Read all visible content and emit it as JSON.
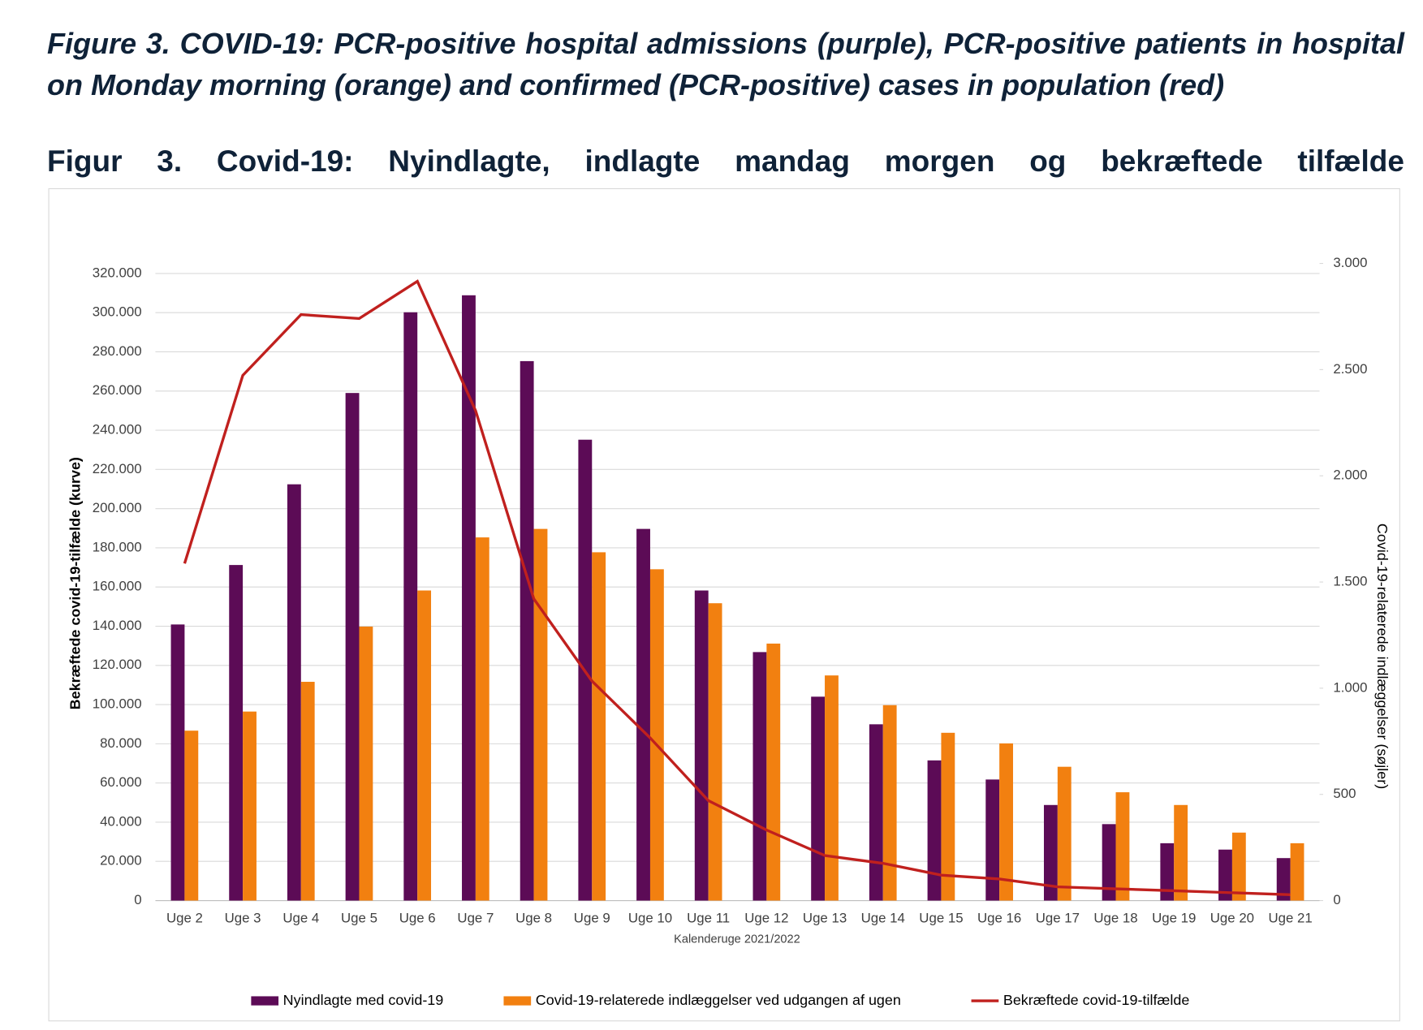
{
  "chart_data": {
    "type": "bar",
    "title": "Figure 3. COVID-19: PCR-positive hospital admissions (purple), PCR-positive patients in hospital on Monday morning (orange) and confirmed (PCR-positive) cases in population (red)",
    "subtitle": "Figur 3. Covid-19: Nyindlagte, indlagte mandag morgen og bekræftede tilfælde",
    "x_label": "Kalenderuge 2021/2022",
    "y_label": "Bekræftede covid-19-tilfælde (kurve)",
    "y2_label": "Covid-19-relaterede indlæggelser (søjler)",
    "categories": [
      "Uge 2",
      "Uge 3",
      "Uge 4",
      "Uge 5",
      "Uge 6",
      "Uge 7",
      "Uge 8",
      "Uge 9",
      "Uge 10",
      "Uge 11",
      "Uge 12",
      "Uge 13",
      "Uge 14",
      "Uge 15",
      "Uge 16",
      "Uge 17",
      "Uge 18",
      "Uge 19",
      "Uge 20",
      "Uge 21"
    ],
    "series": [
      {
        "name": "Nyindlagte med covid-19",
        "type": "bar",
        "axis": "y2",
        "color": "#5c0b56",
        "values": [
          1300,
          1580,
          1960,
          2390,
          2770,
          2850,
          2540,
          2170,
          1750,
          1460,
          1170,
          960,
          830,
          660,
          570,
          450,
          360,
          270,
          240,
          200
        ]
      },
      {
        "name": "Covid-19-relaterede indlæggelser ved udgangen af ugen",
        "type": "bar",
        "axis": "y2",
        "color": "#f28010",
        "values": [
          800,
          890,
          1030,
          1290,
          1460,
          1710,
          1750,
          1640,
          1560,
          1400,
          1210,
          1060,
          920,
          790,
          740,
          630,
          510,
          450,
          320,
          270
        ]
      },
      {
        "name": "Bekræftede covid-19-tilfælde",
        "type": "line",
        "axis": "y",
        "color": "#c0201e",
        "values": [
          172000,
          268000,
          299000,
          297000,
          316000,
          250000,
          154000,
          112000,
          83000,
          51000,
          36000,
          23000,
          19000,
          13000,
          11000,
          7000,
          6000,
          5000,
          4000,
          3000
        ]
      }
    ],
    "ylim": [
      0,
      320000
    ],
    "yticks": [
      0,
      {
        "value": 20000,
        "label": "20.000"
      },
      {
        "value": 40000,
        "label": "40.000"
      },
      {
        "value": 60000,
        "label": "60.000"
      },
      {
        "value": 80000,
        "label": "80.000"
      },
      {
        "value": 100000,
        "label": "100.000"
      },
      {
        "value": 120000,
        "label": "120.000"
      },
      {
        "value": 140000,
        "label": "140.000"
      },
      {
        "value": 160000,
        "label": "160.000"
      },
      {
        "value": 180000,
        "label": "180.000"
      },
      {
        "value": 200000,
        "label": "200.000"
      },
      {
        "value": 220000,
        "label": "220.000"
      },
      {
        "value": 240000,
        "label": "240.000"
      },
      {
        "value": 260000,
        "label": "260.000"
      },
      {
        "value": 280000,
        "label": "280.000"
      },
      {
        "value": 300000,
        "label": "300.000"
      },
      {
        "value": 320000,
        "label": "320.000"
      }
    ],
    "y2lim": [
      0,
      3000
    ],
    "y2ticks": [
      0,
      500,
      {
        "value": 1000,
        "label": "1.000"
      },
      {
        "value": 1500,
        "label": "1.500"
      },
      {
        "value": 2000,
        "label": "2.000"
      },
      {
        "value": 2500,
        "label": "2.500"
      },
      {
        "value": 3000,
        "label": "3.000"
      }
    ],
    "grid": true,
    "legend": "bottom"
  }
}
